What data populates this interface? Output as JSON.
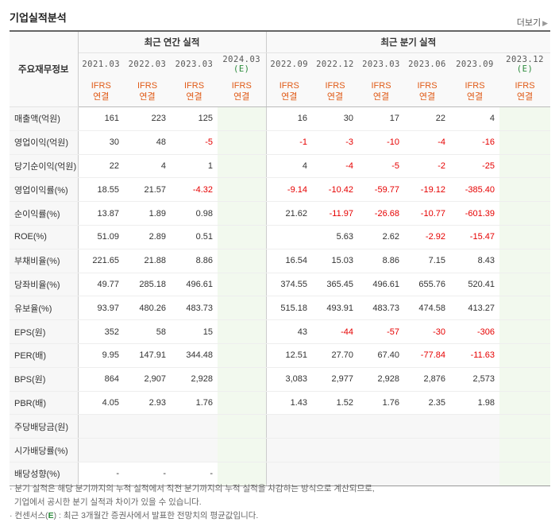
{
  "section_title": "기업실적분석",
  "more_label": "더보기",
  "table": {
    "row_header": "주요재무정보",
    "annual_header": "최근 연간 실적",
    "quarter_header": "최근 분기 실적",
    "periods": [
      "2021.03",
      "2022.03",
      "2023.03",
      "2024.03",
      "2022.09",
      "2022.12",
      "2023.03",
      "2023.06",
      "2023.09",
      "2023.12"
    ],
    "estimate_mark": "(E)",
    "ifrs": "IFRS",
    "consol": "연결",
    "rows": [
      {
        "label": "매출액(억원)",
        "values": [
          "161",
          "223",
          "125",
          "",
          "16",
          "30",
          "17",
          "22",
          "4",
          ""
        ]
      },
      {
        "label": "영업이익(억원)",
        "values": [
          "30",
          "48",
          "-5",
          "",
          "-1",
          "-3",
          "-10",
          "-4",
          "-16",
          ""
        ]
      },
      {
        "label": "당기순이익(억원)",
        "values": [
          "22",
          "4",
          "1",
          "",
          "4",
          "-4",
          "-5",
          "-2",
          "-25",
          ""
        ]
      },
      {
        "label": "영업이익률(%)",
        "values": [
          "18.55",
          "21.57",
          "-4.32",
          "",
          "-9.14",
          "-10.42",
          "-59.77",
          "-19.12",
          "-385.40",
          ""
        ]
      },
      {
        "label": "순이익률(%)",
        "values": [
          "13.87",
          "1.89",
          "0.98",
          "",
          "21.62",
          "-11.97",
          "-26.68",
          "-10.77",
          "-601.39",
          ""
        ]
      },
      {
        "label": "ROE(%)",
        "values": [
          "51.09",
          "2.89",
          "0.51",
          "",
          "",
          "5.63",
          "2.62",
          "-2.92",
          "-15.47",
          ""
        ]
      },
      {
        "label": "부채비율(%)",
        "values": [
          "221.65",
          "21.88",
          "8.86",
          "",
          "16.54",
          "15.03",
          "8.86",
          "7.15",
          "8.43",
          ""
        ]
      },
      {
        "label": "당좌비율(%)",
        "values": [
          "49.77",
          "285.18",
          "496.61",
          "",
          "374.55",
          "365.45",
          "496.61",
          "655.76",
          "520.41",
          ""
        ]
      },
      {
        "label": "유보율(%)",
        "values": [
          "93.97",
          "480.26",
          "483.73",
          "",
          "515.18",
          "493.91",
          "483.73",
          "474.58",
          "413.27",
          ""
        ]
      },
      {
        "label": "EPS(원)",
        "values": [
          "352",
          "58",
          "15",
          "",
          "43",
          "-44",
          "-57",
          "-30",
          "-306",
          ""
        ]
      },
      {
        "label": "PER(배)",
        "values": [
          "9.95",
          "147.91",
          "344.48",
          "",
          "12.51",
          "27.70",
          "67.40",
          "-77.84",
          "-11.63",
          ""
        ]
      },
      {
        "label": "BPS(원)",
        "values": [
          "864",
          "2,907",
          "2,928",
          "",
          "3,083",
          "2,977",
          "2,928",
          "2,876",
          "2,573",
          ""
        ]
      },
      {
        "label": "PBR(배)",
        "values": [
          "4.05",
          "2.93",
          "1.76",
          "",
          "1.43",
          "1.52",
          "1.76",
          "2.35",
          "1.98",
          ""
        ]
      },
      {
        "label": "주당배당금(원)",
        "values": [
          "",
          "",
          "",
          "",
          "",
          "",
          "",
          "",
          "",
          ""
        ]
      },
      {
        "label": "시가배당률(%)",
        "values": [
          "",
          "",
          "",
          "",
          "",
          "",
          "",
          "",
          "",
          ""
        ]
      },
      {
        "label": "배당성향(%)",
        "values": [
          "-",
          "-",
          "-",
          "",
          "",
          "",
          "",
          "",
          "",
          ""
        ]
      }
    ]
  },
  "notes": {
    "line1": "분기 실적은 해당 분기까지의 누적 실적에서 직전 분기까지의 누적 실적을 차감하는 방식으로 계산되므로,",
    "line2": "기업에서 공시한 분기 실적과 차이가 있을 수 있습니다.",
    "line3_prefix": "컨센서스(",
    "line3_mark": "E",
    "line3_suffix": ") : 최근 3개월간 증권사에서 발표한 전망치의 평균값입니다."
  }
}
